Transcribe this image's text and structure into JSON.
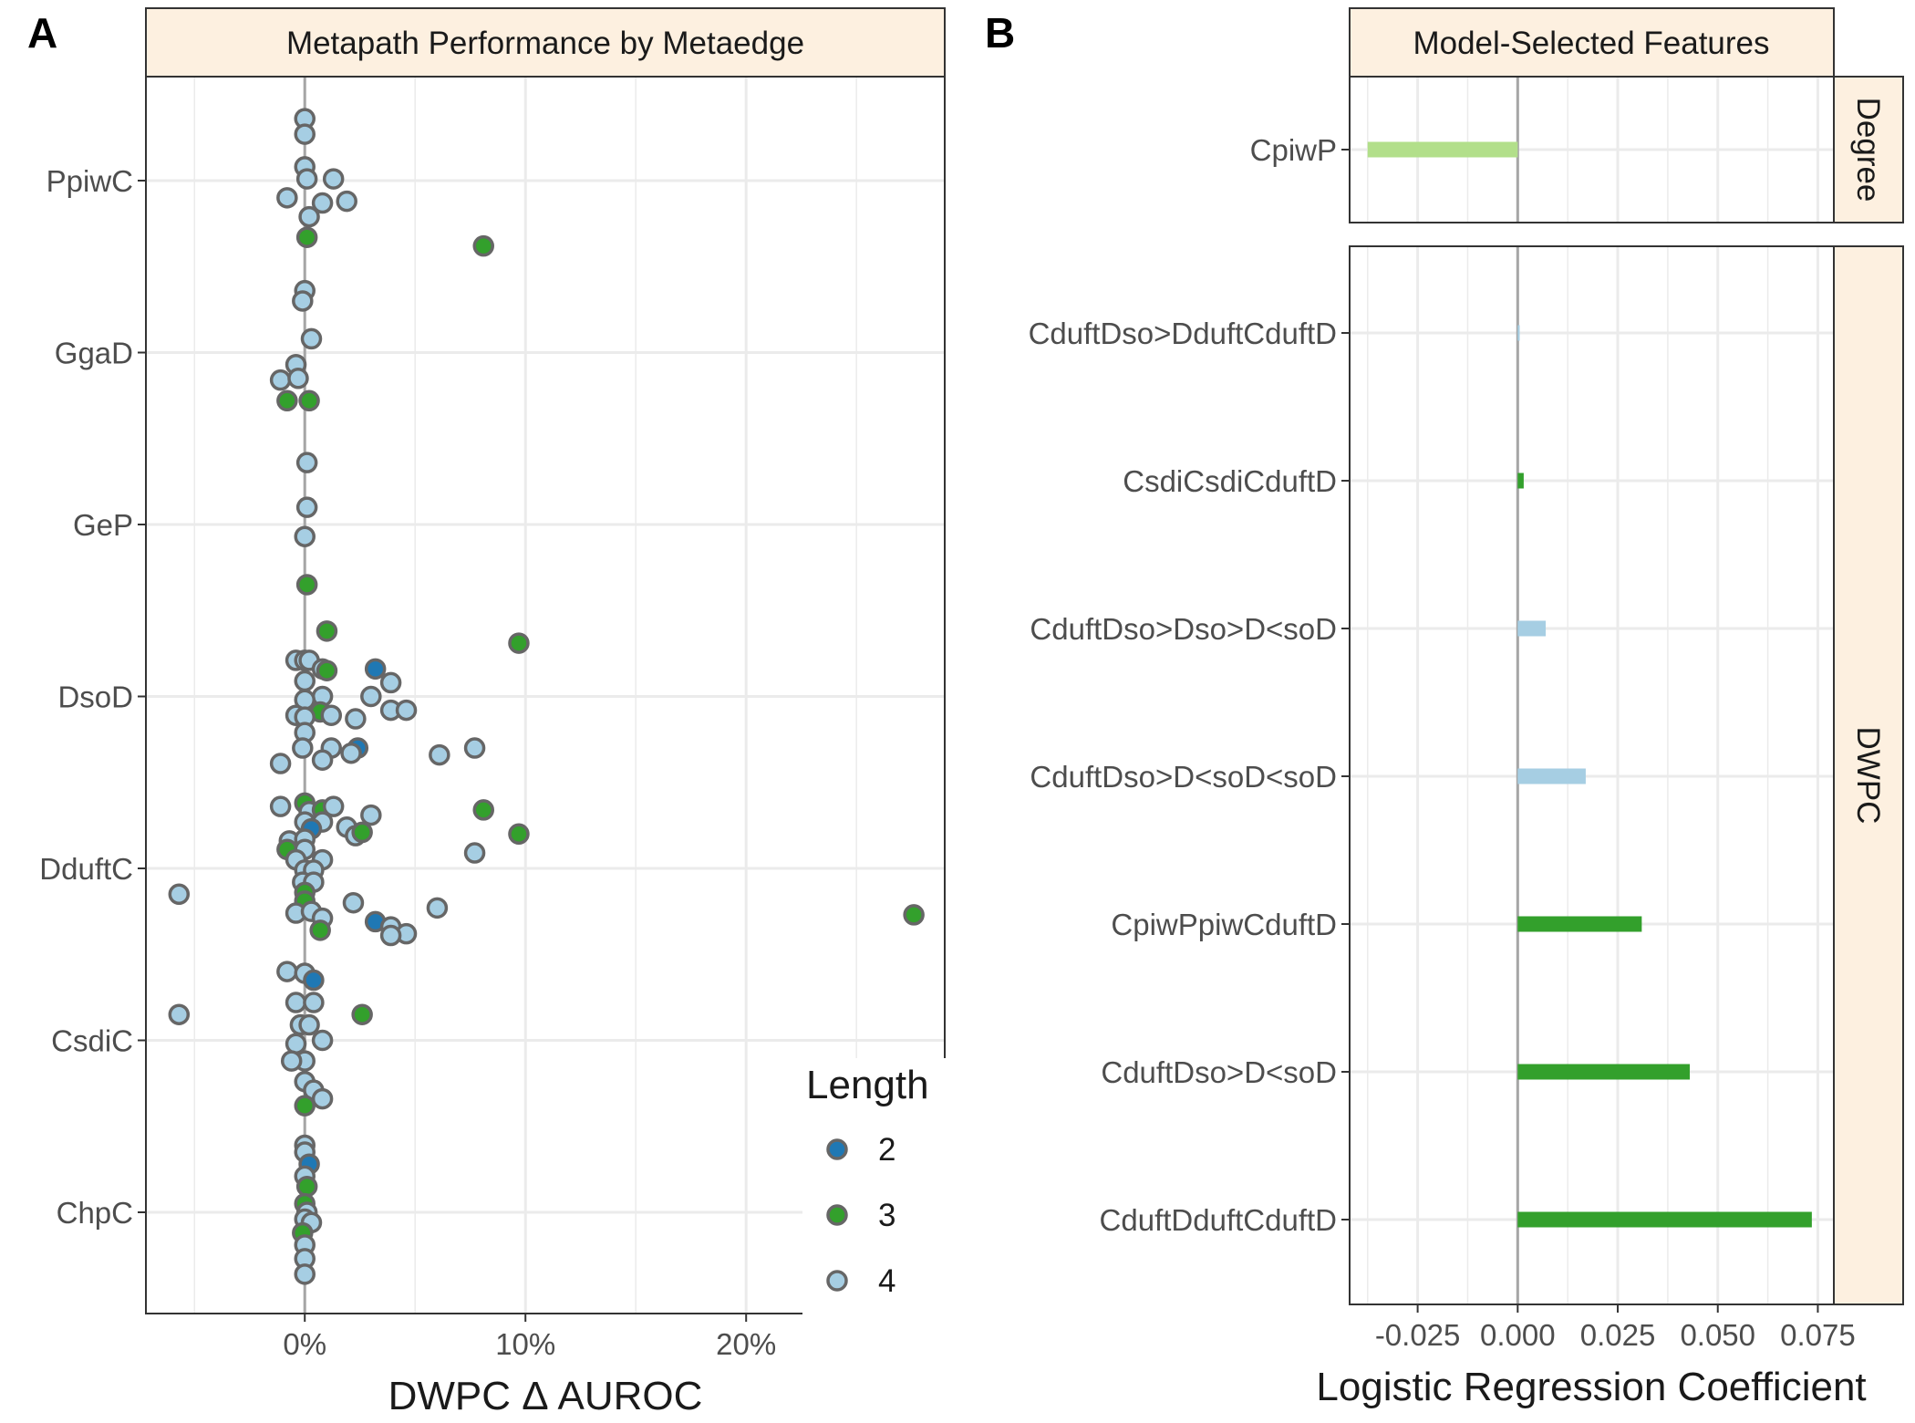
{
  "colors": {
    "length_2": "#1f78b4",
    "length_3": "#33a02c",
    "length_4": "#a6cee3",
    "point_stroke": "#666666",
    "degree_bar": "#b2df8a",
    "grid": "#ebebeb",
    "zero_line": "#a6a6a6",
    "strip_fill": "#fdf0e0"
  },
  "chart_data": [
    {
      "panel": "A",
      "type": "scatter",
      "title": "Metapath Performance by Metaedge",
      "xlabel": "DWPC Δ AUROC",
      "ylabel": "",
      "xlim": [
        -0.072,
        0.29
      ],
      "x_ticks": [
        0,
        0.1,
        0.2
      ],
      "x_tick_labels": [
        "0%",
        "10%",
        "20%"
      ],
      "categories": [
        "PpiwC",
        "GgaD",
        "GeP",
        "DsoD",
        "DduftC",
        "CsdiC",
        "ChpC"
      ],
      "grid": true,
      "legend": {
        "title": "Length",
        "placement": "bottom-right",
        "entries": [
          "2",
          "3",
          "4"
        ]
      },
      "points": [
        {
          "category": "PpiwC",
          "length": 4,
          "x": 0.0,
          "offset": 0.36
        },
        {
          "category": "PpiwC",
          "length": 4,
          "x": 0.0,
          "offset": 0.27
        },
        {
          "category": "PpiwC",
          "length": 4,
          "x": 0.0,
          "offset": 0.08
        },
        {
          "category": "PpiwC",
          "length": 4,
          "x": 0.001,
          "offset": 0.01
        },
        {
          "category": "PpiwC",
          "length": 4,
          "x": 0.013,
          "offset": 0.01
        },
        {
          "category": "PpiwC",
          "length": 4,
          "x": -0.008,
          "offset": -0.1
        },
        {
          "category": "PpiwC",
          "length": 4,
          "x": 0.008,
          "offset": -0.13
        },
        {
          "category": "PpiwC",
          "length": 4,
          "x": 0.019,
          "offset": -0.12
        },
        {
          "category": "PpiwC",
          "length": 4,
          "x": 0.002,
          "offset": -0.21
        },
        {
          "category": "PpiwC",
          "length": 3,
          "x": 0.001,
          "offset": -0.33
        },
        {
          "category": "PpiwC",
          "length": 3,
          "x": 0.081,
          "offset": -0.38
        },
        {
          "category": "GgaD",
          "length": 4,
          "x": 0.0,
          "offset": 0.36
        },
        {
          "category": "GgaD",
          "length": 4,
          "x": -0.001,
          "offset": 0.3
        },
        {
          "category": "GgaD",
          "length": 4,
          "x": 0.003,
          "offset": 0.08
        },
        {
          "category": "GgaD",
          "length": 4,
          "x": -0.004,
          "offset": -0.07
        },
        {
          "category": "GgaD",
          "length": 4,
          "x": -0.011,
          "offset": -0.16
        },
        {
          "category": "GgaD",
          "length": 4,
          "x": -0.003,
          "offset": -0.15
        },
        {
          "category": "GgaD",
          "length": 3,
          "x": -0.008,
          "offset": -0.28
        },
        {
          "category": "GgaD",
          "length": 3,
          "x": 0.002,
          "offset": -0.28
        },
        {
          "category": "GeP",
          "length": 4,
          "x": 0.001,
          "offset": 0.36
        },
        {
          "category": "GeP",
          "length": 4,
          "x": 0.001,
          "offset": 0.1
        },
        {
          "category": "GeP",
          "length": 4,
          "x": 0.0,
          "offset": -0.07
        },
        {
          "category": "GeP",
          "length": 3,
          "x": 0.001,
          "offset": -0.35
        },
        {
          "category": "DsoD",
          "length": 3,
          "x": 0.01,
          "offset": 0.38
        },
        {
          "category": "DsoD",
          "length": 3,
          "x": 0.097,
          "offset": 0.31
        },
        {
          "category": "DsoD",
          "length": 4,
          "x": -0.004,
          "offset": 0.21
        },
        {
          "category": "DsoD",
          "length": 4,
          "x": 0.0,
          "offset": 0.21
        },
        {
          "category": "DsoD",
          "length": 4,
          "x": 0.002,
          "offset": 0.21
        },
        {
          "category": "DsoD",
          "length": 4,
          "x": 0.008,
          "offset": 0.16
        },
        {
          "category": "DsoD",
          "length": 3,
          "x": 0.01,
          "offset": 0.15
        },
        {
          "category": "DsoD",
          "length": 2,
          "x": 0.032,
          "offset": 0.16
        },
        {
          "category": "DsoD",
          "length": 4,
          "x": 0.0,
          "offset": 0.09
        },
        {
          "category": "DsoD",
          "length": 4,
          "x": 0.039,
          "offset": 0.08
        },
        {
          "category": "DsoD",
          "length": 4,
          "x": 0.008,
          "offset": 0.0
        },
        {
          "category": "DsoD",
          "length": 4,
          "x": 0.0,
          "offset": -0.02
        },
        {
          "category": "DsoD",
          "length": 4,
          "x": 0.03,
          "offset": 0.0
        },
        {
          "category": "DsoD",
          "length": 4,
          "x": 0.039,
          "offset": -0.08
        },
        {
          "category": "DsoD",
          "length": 4,
          "x": 0.046,
          "offset": -0.08
        },
        {
          "category": "DsoD",
          "length": 3,
          "x": 0.007,
          "offset": -0.09
        },
        {
          "category": "DsoD",
          "length": 4,
          "x": -0.004,
          "offset": -0.11
        },
        {
          "category": "DsoD",
          "length": 4,
          "x": 0.0,
          "offset": -0.12
        },
        {
          "category": "DsoD",
          "length": 4,
          "x": 0.023,
          "offset": -0.13
        },
        {
          "category": "DsoD",
          "length": 4,
          "x": 0.012,
          "offset": -0.11
        },
        {
          "category": "DsoD",
          "length": 4,
          "x": 0.0,
          "offset": -0.21
        },
        {
          "category": "DsoD",
          "length": 2,
          "x": 0.024,
          "offset": -0.3
        },
        {
          "category": "DsoD",
          "length": 4,
          "x": 0.021,
          "offset": -0.33
        },
        {
          "category": "DsoD",
          "length": 4,
          "x": 0.012,
          "offset": -0.3
        },
        {
          "category": "DsoD",
          "length": 4,
          "x": -0.001,
          "offset": -0.3
        },
        {
          "category": "DsoD",
          "length": 4,
          "x": 0.061,
          "offset": -0.34
        },
        {
          "category": "DsoD",
          "length": 4,
          "x": 0.077,
          "offset": -0.3
        },
        {
          "category": "DsoD",
          "length": 4,
          "x": 0.008,
          "offset": -0.37
        },
        {
          "category": "DsoD",
          "length": 4,
          "x": -0.011,
          "offset": -0.39
        },
        {
          "category": "DduftC",
          "length": 3,
          "x": 0.0,
          "offset": 0.38
        },
        {
          "category": "DduftC",
          "length": 4,
          "x": -0.011,
          "offset": 0.36
        },
        {
          "category": "DduftC",
          "length": 4,
          "x": 0.002,
          "offset": 0.33
        },
        {
          "category": "DduftC",
          "length": 3,
          "x": 0.008,
          "offset": 0.34
        },
        {
          "category": "DduftC",
          "length": 4,
          "x": 0.013,
          "offset": 0.36
        },
        {
          "category": "DduftC",
          "length": 3,
          "x": 0.081,
          "offset": 0.34
        },
        {
          "category": "DduftC",
          "length": 4,
          "x": 0.03,
          "offset": 0.31
        },
        {
          "category": "DduftC",
          "length": 4,
          "x": 0.0,
          "offset": 0.27
        },
        {
          "category": "DduftC",
          "length": 4,
          "x": 0.008,
          "offset": 0.27
        },
        {
          "category": "DduftC",
          "length": 4,
          "x": 0.019,
          "offset": 0.24
        },
        {
          "category": "DduftC",
          "length": 2,
          "x": 0.003,
          "offset": 0.23
        },
        {
          "category": "DduftC",
          "length": 4,
          "x": 0.023,
          "offset": 0.19
        },
        {
          "category": "DduftC",
          "length": 3,
          "x": 0.026,
          "offset": 0.21
        },
        {
          "category": "DduftC",
          "length": 3,
          "x": 0.097,
          "offset": 0.2
        },
        {
          "category": "DduftC",
          "length": 4,
          "x": -0.007,
          "offset": 0.16
        },
        {
          "category": "DduftC",
          "length": 4,
          "x": 0.0,
          "offset": 0.17
        },
        {
          "category": "DduftC",
          "length": 3,
          "x": -0.008,
          "offset": 0.11
        },
        {
          "category": "DduftC",
          "length": 4,
          "x": 0.0,
          "offset": 0.11
        },
        {
          "category": "DduftC",
          "length": 4,
          "x": 0.077,
          "offset": 0.09
        },
        {
          "category": "DduftC",
          "length": 4,
          "x": -0.004,
          "offset": 0.05
        },
        {
          "category": "DduftC",
          "length": 4,
          "x": 0.008,
          "offset": 0.05
        },
        {
          "category": "DduftC",
          "length": 4,
          "x": 0.0,
          "offset": -0.01
        },
        {
          "category": "DduftC",
          "length": 4,
          "x": 0.004,
          "offset": -0.01
        },
        {
          "category": "DduftC",
          "length": 4,
          "x": -0.001,
          "offset": -0.08
        },
        {
          "category": "DduftC",
          "length": 4,
          "x": 0.004,
          "offset": -0.08
        },
        {
          "category": "DduftC",
          "length": 4,
          "x": -0.057,
          "offset": -0.15
        },
        {
          "category": "DduftC",
          "length": 3,
          "x": 0.0,
          "offset": -0.14
        },
        {
          "category": "DduftC",
          "length": 3,
          "x": 0.0,
          "offset": -0.19
        },
        {
          "category": "DduftC",
          "length": 4,
          "x": 0.022,
          "offset": -0.2
        },
        {
          "category": "DduftC",
          "length": 4,
          "x": 0.06,
          "offset": -0.23
        },
        {
          "category": "DduftC",
          "length": 4,
          "x": -0.004,
          "offset": -0.26
        },
        {
          "category": "DduftC",
          "length": 4,
          "x": 0.003,
          "offset": -0.25
        },
        {
          "category": "DduftC",
          "length": 4,
          "x": 0.008,
          "offset": -0.29
        },
        {
          "category": "DduftC",
          "length": 2,
          "x": 0.032,
          "offset": -0.31
        },
        {
          "category": "DduftC",
          "length": 4,
          "x": 0.039,
          "offset": -0.34
        },
        {
          "category": "DduftC",
          "length": 4,
          "x": 0.046,
          "offset": -0.38
        },
        {
          "category": "DduftC",
          "length": 4,
          "x": 0.039,
          "offset": -0.39
        },
        {
          "category": "DduftC",
          "length": 3,
          "x": 0.007,
          "offset": -0.36
        },
        {
          "category": "DduftC",
          "length": 3,
          "x": 0.276,
          "offset": -0.27
        },
        {
          "category": "CsdiC",
          "length": 4,
          "x": -0.008,
          "offset": 0.4
        },
        {
          "category": "CsdiC",
          "length": 4,
          "x": 0.0,
          "offset": 0.39
        },
        {
          "category": "CsdiC",
          "length": 2,
          "x": 0.004,
          "offset": 0.35
        },
        {
          "category": "CsdiC",
          "length": 4,
          "x": -0.004,
          "offset": 0.22
        },
        {
          "category": "CsdiC",
          "length": 4,
          "x": 0.004,
          "offset": 0.22
        },
        {
          "category": "CsdiC",
          "length": 4,
          "x": -0.057,
          "offset": 0.15
        },
        {
          "category": "CsdiC",
          "length": 3,
          "x": 0.026,
          "offset": 0.15
        },
        {
          "category": "CsdiC",
          "length": 4,
          "x": -0.002,
          "offset": 0.09
        },
        {
          "category": "CsdiC",
          "length": 4,
          "x": 0.002,
          "offset": 0.09
        },
        {
          "category": "CsdiC",
          "length": 4,
          "x": 0.008,
          "offset": 0.0
        },
        {
          "category": "CsdiC",
          "length": 4,
          "x": -0.004,
          "offset": -0.02
        },
        {
          "category": "CsdiC",
          "length": 4,
          "x": 0.0,
          "offset": -0.12
        },
        {
          "category": "CsdiC",
          "length": 4,
          "x": -0.006,
          "offset": -0.12
        },
        {
          "category": "CsdiC",
          "length": 4,
          "x": 0.0,
          "offset": -0.24
        },
        {
          "category": "CsdiC",
          "length": 4,
          "x": 0.004,
          "offset": -0.29
        },
        {
          "category": "CsdiC",
          "length": 4,
          "x": 0.008,
          "offset": -0.34
        },
        {
          "category": "CsdiC",
          "length": 3,
          "x": 0.0,
          "offset": -0.38
        },
        {
          "category": "ChpC",
          "length": 4,
          "x": 0.0,
          "offset": 0.39
        },
        {
          "category": "ChpC",
          "length": 4,
          "x": 0.0,
          "offset": 0.35
        },
        {
          "category": "ChpC",
          "length": 2,
          "x": 0.002,
          "offset": 0.28
        },
        {
          "category": "ChpC",
          "length": 4,
          "x": 0.0,
          "offset": 0.21
        },
        {
          "category": "ChpC",
          "length": 3,
          "x": 0.001,
          "offset": 0.15
        },
        {
          "category": "ChpC",
          "length": 3,
          "x": 0.0,
          "offset": 0.05
        },
        {
          "category": "ChpC",
          "length": 4,
          "x": 0.001,
          "offset": 0.0
        },
        {
          "category": "ChpC",
          "length": 4,
          "x": 0.0,
          "offset": -0.04
        },
        {
          "category": "ChpC",
          "length": 4,
          "x": 0.003,
          "offset": -0.06
        },
        {
          "category": "ChpC",
          "length": 3,
          "x": -0.001,
          "offset": -0.12
        },
        {
          "category": "ChpC",
          "length": 4,
          "x": 0.0,
          "offset": -0.19
        },
        {
          "category": "ChpC",
          "length": 4,
          "x": 0.0,
          "offset": -0.27
        },
        {
          "category": "ChpC",
          "length": 4,
          "x": 0.0,
          "offset": -0.36
        }
      ]
    },
    {
      "panel": "B",
      "type": "bar",
      "orientation": "horizontal",
      "title": "Model-Selected Features",
      "xlabel": "Logistic Regression Coefficient",
      "ylabel": "",
      "xlim": [
        -0.042,
        0.079
      ],
      "x_ticks": [
        -0.025,
        0.0,
        0.025,
        0.05,
        0.075
      ],
      "x_tick_labels": [
        "-0.025",
        "0.000",
        "0.025",
        "0.050",
        "0.075"
      ],
      "grid": true,
      "facets": [
        {
          "name": "Degree",
          "bars": [
            {
              "label": "CpiwP",
              "value": -0.0375,
              "length": 3
            }
          ]
        },
        {
          "name": "DWPC",
          "bars": [
            {
              "label": "CduftDso>DduftCduftD",
              "value": 0.0005,
              "length": 4
            },
            {
              "label": "CsdiCsdiCduftD",
              "value": 0.0015,
              "length": 3
            },
            {
              "label": "CduftDso>Dso>D<soD",
              "value": 0.007,
              "length": 4
            },
            {
              "label": "CduftDso>D<soD<soD",
              "value": 0.017,
              "length": 4
            },
            {
              "label": "CpiwPpiwCduftD",
              "value": 0.031,
              "length": 3
            },
            {
              "label": "CduftDso>D<soD",
              "value": 0.043,
              "length": 3
            },
            {
              "label": "CduftDduftCduftD",
              "value": 0.0735,
              "length": 3
            }
          ]
        }
      ]
    }
  ]
}
